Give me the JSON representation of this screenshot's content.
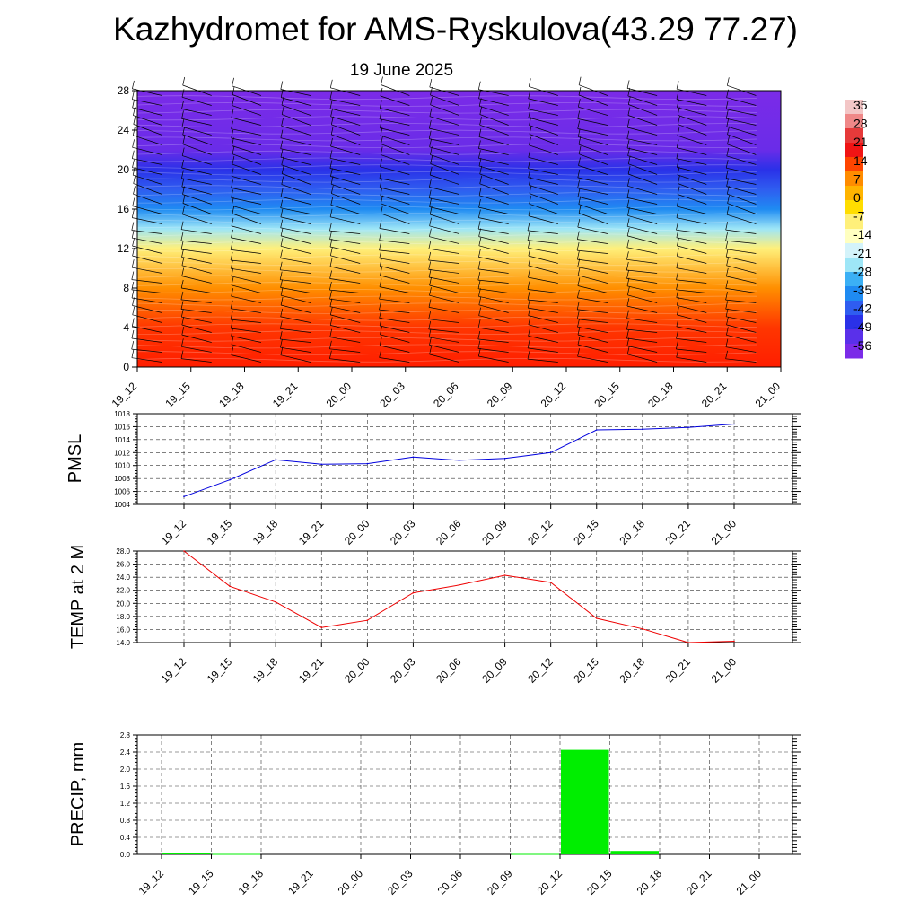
{
  "page": {
    "title": "Kazhydromet for AMS-Ryskulova(43.29 77.27)",
    "date": "19 June 2025"
  },
  "chart_data": [
    {
      "type": "heatmap",
      "panel": "vertical-cross-section",
      "title": "",
      "xlabel": "",
      "ylabel": "",
      "x_ticks": [
        "19_12",
        "19_15",
        "19_18",
        "19_21",
        "20_00",
        "20_03",
        "20_06",
        "20_09",
        "20_12",
        "20_15",
        "20_18",
        "20_21",
        "21_00"
      ],
      "y_ticks": [
        "0",
        "4",
        "8",
        "12",
        "16",
        "20",
        "24",
        "28"
      ],
      "ylim": [
        0,
        28
      ],
      "colorbar": {
        "labels": [
          "35",
          "28",
          "21",
          "14",
          "7",
          "0",
          "-7",
          "-14",
          "-21",
          "-28",
          "-35",
          "-42",
          "-49",
          "-56"
        ],
        "values": [
          35,
          28,
          21,
          14,
          7,
          0,
          -7,
          -14,
          -21,
          -28,
          -35,
          -42,
          -49,
          -56
        ]
      },
      "temperature_profile": [
        {
          "level": 0,
          "value": 35
        },
        {
          "level": 4,
          "value": 28
        },
        {
          "level": 8,
          "value": 14
        },
        {
          "level": 12,
          "value": -7
        },
        {
          "level": 14,
          "value": -21
        },
        {
          "level": 16,
          "value": -35
        },
        {
          "level": 18,
          "value": -45
        },
        {
          "level": 20,
          "value": -52
        },
        {
          "level": 22,
          "value": -58
        },
        {
          "level": 28,
          "value": -60
        }
      ],
      "wind_barbs": "shown",
      "colors": {
        "warm": "#ff1e00",
        "orange": "#ff9900",
        "yellow": "#fff07a",
        "light-blue": "#9ee6f7",
        "blue": "#1f8bf2",
        "deep-blue": "#2a31e8",
        "violet": "#7b2be8"
      }
    },
    {
      "type": "line",
      "panel": "pmsl",
      "ylabel": "PMSL",
      "categories": [
        "19_12",
        "19_15",
        "19_18",
        "19_21",
        "20_00",
        "20_03",
        "20_06",
        "20_09",
        "20_12",
        "20_15",
        "20_18",
        "20_21",
        "21_00"
      ],
      "values": [
        1005.2,
        1007.8,
        1010.9,
        1010.2,
        1010.3,
        1011.3,
        1010.8,
        1011.1,
        1012.0,
        1015.5,
        1015.6,
        1015.9,
        1016.4
      ],
      "ylim": [
        1004,
        1018
      ],
      "y_ticks": [
        "1004",
        "1006",
        "1008",
        "1010",
        "1012",
        "1014",
        "1016",
        "1018"
      ],
      "grid": true,
      "line_color": "#0000dd"
    },
    {
      "type": "line",
      "panel": "temp-2m",
      "ylabel": "TEMP at 2 M",
      "categories": [
        "19_12",
        "19_15",
        "19_18",
        "19_21",
        "20_00",
        "20_03",
        "20_06",
        "20_09",
        "20_12",
        "20_15",
        "20_18",
        "20_21",
        "21_00"
      ],
      "values": [
        28.0,
        22.6,
        20.2,
        16.3,
        17.4,
        21.6,
        22.8,
        24.3,
        23.2,
        17.7,
        16.1,
        14.0,
        14.2
      ],
      "ylim": [
        14,
        28
      ],
      "y_ticks": [
        "14.0",
        "16.0",
        "18.0",
        "20.0",
        "22.0",
        "24.0",
        "26.0",
        "28.0"
      ],
      "grid": true,
      "line_color": "#ee0000"
    },
    {
      "type": "bar",
      "panel": "precip",
      "ylabel": "PRECIP, mm",
      "categories": [
        "19_12",
        "19_15",
        "19_18",
        "19_21",
        "20_00",
        "20_03",
        "20_06",
        "20_09",
        "20_12",
        "20_15",
        "20_18",
        "20_21",
        "21_00"
      ],
      "values": [
        0,
        0.02,
        0.01,
        0,
        0,
        0,
        0,
        0,
        0.01,
        2.45,
        0.08,
        0,
        0
      ],
      "ylim": [
        0,
        2.8
      ],
      "y_ticks": [
        "0.0",
        "0.4",
        "0.8",
        "1.2",
        "1.6",
        "2.0",
        "2.4",
        "2.8"
      ],
      "grid": true,
      "bar_color": "#00ee00"
    }
  ]
}
